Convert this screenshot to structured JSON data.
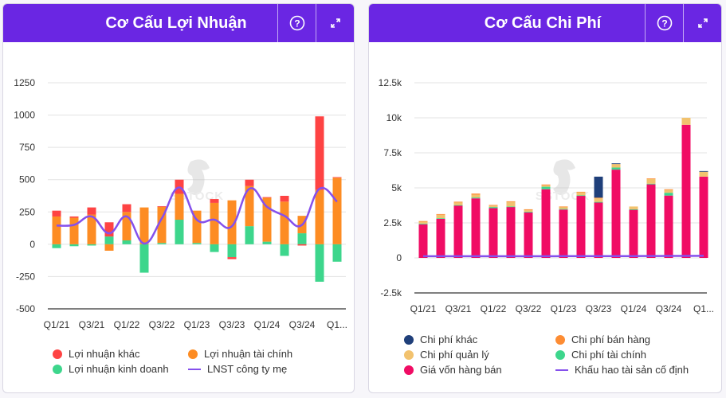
{
  "panels": [
    {
      "title": "Cơ Cấu Lợi Nhuận",
      "help_icon": "question-circle-icon",
      "expand_icon": "expand-arrows-icon"
    },
    {
      "title": "Cơ Cấu Chi Phí",
      "help_icon": "question-circle-icon",
      "expand_icon": "expand-arrows-icon"
    }
  ],
  "watermark": "SSTOCK",
  "chart_data": [
    {
      "type": "bar",
      "stacked": true,
      "title": "Cơ Cấu Lợi Nhuận",
      "categories": [
        "Q1/21",
        "Q2/21",
        "Q3/21",
        "Q4/21",
        "Q1/22",
        "Q2/22",
        "Q3/22",
        "Q4/22",
        "Q1/23",
        "Q2/23",
        "Q3/23",
        "Q4/23",
        "Q1/24",
        "Q2/24",
        "Q3/24",
        "Q4/24",
        "Q1/25"
      ],
      "xtick_labels": [
        "Q1/21",
        "Q3/21",
        "Q1/22",
        "Q3/22",
        "Q1/23",
        "Q3/23",
        "Q1/24",
        "Q3/24",
        "Q1..."
      ],
      "yticks": [
        1250,
        1000,
        750,
        500,
        250,
        0,
        -250,
        -500
      ],
      "ylim": [
        -500,
        1250
      ],
      "grid": true,
      "legend_position": "bottom",
      "series": [
        {
          "name": "Lợi nhuận kinh doanh",
          "kind": "bar",
          "color": "#3dd68c",
          "values": [
            -30,
            -15,
            -10,
            60,
            30,
            -220,
            10,
            190,
            10,
            -60,
            -100,
            140,
            20,
            -90,
            85,
            -290,
            -135
          ]
        },
        {
          "name": "Lợi nhuận tài chính",
          "kind": "bar",
          "color": "#fd8c23",
          "values": [
            215,
            205,
            230,
            -50,
            220,
            285,
            280,
            200,
            250,
            320,
            340,
            310,
            340,
            330,
            135,
            420,
            515
          ]
        },
        {
          "name": "Lợi nhuận khác",
          "kind": "bar",
          "color": "#fe4343",
          "values": [
            45,
            10,
            55,
            110,
            60,
            0,
            5,
            110,
            0,
            30,
            -15,
            50,
            5,
            45,
            -10,
            570,
            5
          ]
        },
        {
          "name": "LNST công ty mẹ",
          "kind": "line",
          "color": "#8550ec",
          "values": [
            145,
            150,
            215,
            85,
            215,
            5,
            200,
            440,
            190,
            190,
            140,
            430,
            290,
            220,
            150,
            430,
            330
          ]
        }
      ],
      "legend": [
        {
          "name": "Lợi nhuận khác",
          "marker": "dot",
          "color": "#fe4343"
        },
        {
          "name": "Lợi nhuận tài chính",
          "marker": "dot",
          "color": "#fd8c23"
        },
        {
          "name": "Lợi nhuận kinh doanh",
          "marker": "dot",
          "color": "#3dd68c"
        },
        {
          "name": "LNST công ty mẹ",
          "marker": "line",
          "color": "#8550ec"
        }
      ]
    },
    {
      "type": "bar",
      "stacked": true,
      "title": "Cơ Cấu Chi Phí",
      "categories": [
        "Q1/21",
        "Q2/21",
        "Q3/21",
        "Q4/21",
        "Q1/22",
        "Q2/22",
        "Q3/22",
        "Q4/22",
        "Q1/23",
        "Q2/23",
        "Q3/23",
        "Q4/23",
        "Q1/24",
        "Q2/24",
        "Q3/24",
        "Q4/24",
        "Q1/25"
      ],
      "xtick_labels": [
        "Q1/21",
        "Q3/21",
        "Q1/22",
        "Q3/22",
        "Q1/23",
        "Q3/23",
        "Q1/24",
        "Q3/24",
        "Q1..."
      ],
      "yticks": [
        "12.5k",
        "10k",
        "7.5k",
        "5k",
        "2.5k",
        "0",
        "-2.5k"
      ],
      "ytick_values": [
        12500,
        10000,
        7500,
        5000,
        2500,
        0,
        -2500
      ],
      "ylim": [
        -2500,
        12500
      ],
      "grid": true,
      "legend_position": "bottom",
      "series": [
        {
          "name": "Giá vốn hàng bán",
          "kind": "bar",
          "color": "#f00c64",
          "values": [
            2400,
            2800,
            3750,
            4250,
            3550,
            3650,
            3250,
            4900,
            3450,
            4450,
            3950,
            6300,
            3450,
            5250,
            4450,
            9500,
            5800
          ]
        },
        {
          "name": "Chi phí tài chính",
          "kind": "bar",
          "color": "#3dd68c",
          "values": [
            50,
            30,
            20,
            60,
            80,
            20,
            50,
            180,
            50,
            20,
            50,
            150,
            20,
            50,
            200,
            0,
            0
          ]
        },
        {
          "name": "Chi phí quản lý",
          "kind": "bar",
          "color": "#f2c26e",
          "values": [
            150,
            250,
            220,
            200,
            100,
            350,
            150,
            100,
            150,
            200,
            250,
            250,
            200,
            350,
            200,
            500,
            350
          ]
        },
        {
          "name": "Chi phí bán hàng",
          "kind": "bar",
          "color": "#fd8c33",
          "values": [
            30,
            50,
            20,
            80,
            50,
            20,
            20,
            60,
            20,
            50,
            50,
            0,
            0,
            20,
            50,
            0,
            0
          ]
        },
        {
          "name": "Chi phí khác",
          "kind": "bar",
          "color": "#1f3f7a",
          "values": [
            0,
            0,
            0,
            0,
            0,
            0,
            0,
            0,
            0,
            0,
            1500,
            50,
            0,
            0,
            0,
            0,
            50
          ]
        },
        {
          "name": "Khấu hao tài sản cố định",
          "kind": "line",
          "color": "#8550ec",
          "values": [
            120,
            120,
            120,
            120,
            120,
            120,
            120,
            120,
            125,
            125,
            125,
            130,
            130,
            135,
            140,
            145,
            150
          ]
        }
      ],
      "legend": [
        {
          "name": "Chi phí khác",
          "marker": "dot",
          "color": "#1f3f7a"
        },
        {
          "name": "Chi phí bán hàng",
          "marker": "dot",
          "color": "#fd8c33"
        },
        {
          "name": "Chi phí quản lý",
          "marker": "dot",
          "color": "#f2c26e"
        },
        {
          "name": "Chi phí tài chính",
          "marker": "dot",
          "color": "#3dd68c"
        },
        {
          "name": "Giá vốn hàng bán",
          "marker": "dot",
          "color": "#f00c64"
        },
        {
          "name": "Khấu hao tài sản cố định",
          "marker": "line",
          "color": "#8550ec"
        }
      ]
    }
  ]
}
